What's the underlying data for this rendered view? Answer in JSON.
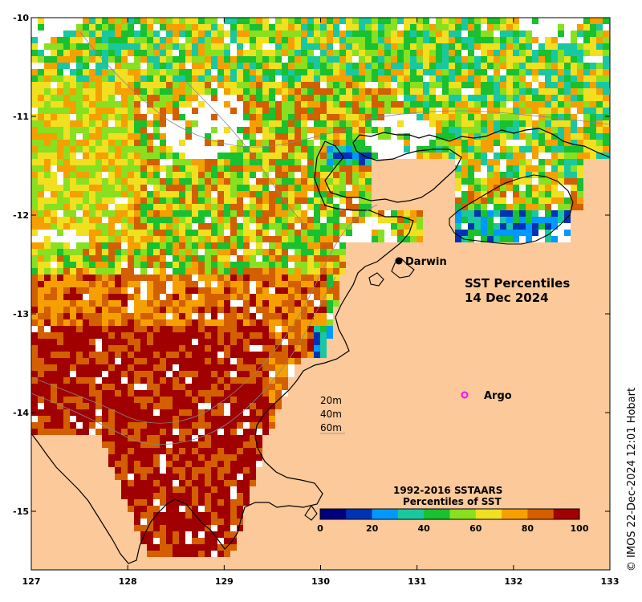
{
  "map": {
    "title_line1": "SST Percentiles",
    "title_line2": "14 Dec 2024",
    "credit": "© IMOS 22-Dec-2024 12:01 Hobart",
    "x_axis_ticks": [
      "127",
      "128",
      "129",
      "130",
      "131",
      "132",
      "133"
    ],
    "y_axis_ticks": [
      "-10",
      "-11",
      "-12",
      "-13",
      "-14",
      "-15"
    ],
    "places": [
      {
        "name": "Darwin",
        "lon": 130.84,
        "lat": -12.45,
        "marker": "filled-dot"
      },
      {
        "name": "Argo",
        "lon": 131.5,
        "lat": -13.8,
        "marker": "magenta-ring"
      }
    ],
    "contour_legend": [
      "20m",
      "40m",
      "60m"
    ],
    "colorbar": {
      "title_line1": "1992-2016 SSTAARS",
      "title_line2": "Percentiles of SST",
      "ticks": [
        "0",
        "20",
        "40",
        "60",
        "80",
        "100"
      ],
      "colors": [
        "#00007f",
        "#0033b3",
        "#0099ff",
        "#19c8a0",
        "#19c030",
        "#88e020",
        "#f0e020",
        "#f5a000",
        "#d35f00",
        "#a00000"
      ]
    },
    "land_color": "#fbc99a",
    "nodata_color": "#ffffff",
    "extent": {
      "lon": [
        127,
        133
      ],
      "lat": [
        -15.6,
        -10
      ]
    }
  }
}
